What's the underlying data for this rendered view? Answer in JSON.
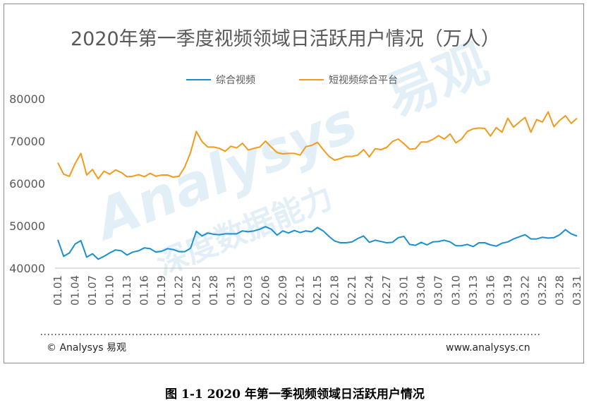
{
  "watermark": {
    "brand": "易观",
    "latin": "Analysys",
    "slogan": "深度数据能力"
  },
  "footer": {
    "left": "© Analysys 易观",
    "right": "www.analysys.cn"
  },
  "caption": "图 1-1 2020 年第一季视频领域日活跃用户情况",
  "colors": {
    "series1": "#1b8fd0",
    "series2": "#f29b1c",
    "axis": "#bfbfbf",
    "dotted": "#595959",
    "text": "#595959"
  },
  "chart_data": {
    "type": "line",
    "title": "2020年第一季度视频领域日活跃用户情况（万人）",
    "legend_position": "top-center",
    "grid": false,
    "ylim": [
      40000,
      80000
    ],
    "yticks": [
      40000,
      50000,
      60000,
      70000,
      80000
    ],
    "ytick_labels": [
      "40000",
      "50000",
      "60000",
      "70000",
      "80000"
    ],
    "x": [
      "01.01",
      "01.02",
      "01.03",
      "01.04",
      "01.05",
      "01.06",
      "01.07",
      "01.08",
      "01.09",
      "01.10",
      "01.11",
      "01.12",
      "01.13",
      "01.14",
      "01.15",
      "01.16",
      "01.17",
      "01.18",
      "01.19",
      "01.20",
      "01.21",
      "01.22",
      "01.23",
      "01.24",
      "01.25",
      "01.26",
      "01.27",
      "01.28",
      "01.29",
      "01.30",
      "01.31",
      "02.01",
      "02.02",
      "02.03",
      "02.04",
      "02.05",
      "02.06",
      "02.07",
      "02.08",
      "02.09",
      "02.10",
      "02.11",
      "02.12",
      "02.13",
      "02.14",
      "02.15",
      "02.16",
      "02.17",
      "02.18",
      "02.19",
      "02.20",
      "02.21",
      "02.22",
      "02.23",
      "02.24",
      "02.25",
      "02.26",
      "02.27",
      "02.28",
      "02.29",
      "03.01",
      "03.02",
      "03.03",
      "03.04",
      "03.05",
      "03.06",
      "03.07",
      "03.08",
      "03.09",
      "03.10",
      "03.11",
      "03.12",
      "03.13",
      "03.14",
      "03.15",
      "03.16",
      "03.17",
      "03.18",
      "03.19",
      "03.20",
      "03.21",
      "03.22",
      "03.23",
      "03.24",
      "03.25",
      "03.26",
      "03.27",
      "03.28",
      "03.29",
      "03.30",
      "03.31"
    ],
    "x_tick_labels": [
      "01.01",
      "01.04",
      "01.07",
      "01.10",
      "01.13",
      "01.16",
      "01.19",
      "01.22",
      "01.25",
      "01.28",
      "01.31",
      "02.03",
      "02.06",
      "02.09",
      "02.12",
      "02.15",
      "02.18",
      "02.21",
      "02.24",
      "02.27",
      "03.01",
      "03.04",
      "03.07",
      "03.10",
      "03.13",
      "03.16",
      "03.19",
      "03.22",
      "03.25",
      "03.28",
      "03.31"
    ],
    "series": [
      {
        "name": "综合视频",
        "color": "#1b8fd0",
        "values": [
          46700,
          42800,
          43600,
          45700,
          46500,
          42600,
          43400,
          42100,
          42800,
          43600,
          44300,
          44100,
          43100,
          43800,
          44100,
          44800,
          44600,
          43800,
          44000,
          44600,
          44400,
          43900,
          43900,
          44700,
          48700,
          47600,
          48300,
          48000,
          47900,
          48100,
          48100,
          48100,
          48800,
          48600,
          48800,
          49200,
          49800,
          49200,
          47800,
          48800,
          48300,
          48900,
          48400,
          48800,
          48600,
          49600,
          48800,
          47500,
          46400,
          46000,
          46000,
          46200,
          47000,
          47600,
          46100,
          46600,
          46300,
          46000,
          46100,
          47200,
          47500,
          45600,
          45400,
          46100,
          45500,
          46200,
          46300,
          46600,
          46200,
          45300,
          45300,
          45600,
          45100,
          46000,
          46000,
          45500,
          45200,
          45900,
          46200,
          46900,
          47400,
          47900,
          46900,
          46900,
          47300,
          47100,
          47200,
          47900,
          49100,
          48100,
          47600
        ]
      },
      {
        "name": "短视频综合平台",
        "color": "#f29b1c",
        "values": [
          64900,
          62200,
          61700,
          64700,
          67100,
          62000,
          63300,
          61100,
          62900,
          62200,
          63200,
          62600,
          61600,
          61700,
          62100,
          61600,
          62400,
          61700,
          62000,
          62000,
          61500,
          61700,
          63900,
          67300,
          72300,
          69900,
          68600,
          68600,
          68300,
          67600,
          68800,
          68400,
          69500,
          67900,
          68300,
          68600,
          70000,
          68600,
          67300,
          67000,
          67100,
          67100,
          66700,
          68700,
          69000,
          69700,
          68000,
          66400,
          65500,
          65900,
          66400,
          66400,
          66700,
          68000,
          66300,
          68200,
          68000,
          68500,
          69900,
          70500,
          69400,
          68100,
          68200,
          69800,
          69800,
          70400,
          71300,
          70500,
          71700,
          69600,
          70500,
          72300,
          72900,
          73100,
          73000,
          71200,
          73200,
          72100,
          75400,
          73300,
          74500,
          75600,
          72100,
          75100,
          74500,
          76900,
          73400,
          74900,
          76000,
          74200,
          75400
        ]
      }
    ]
  }
}
